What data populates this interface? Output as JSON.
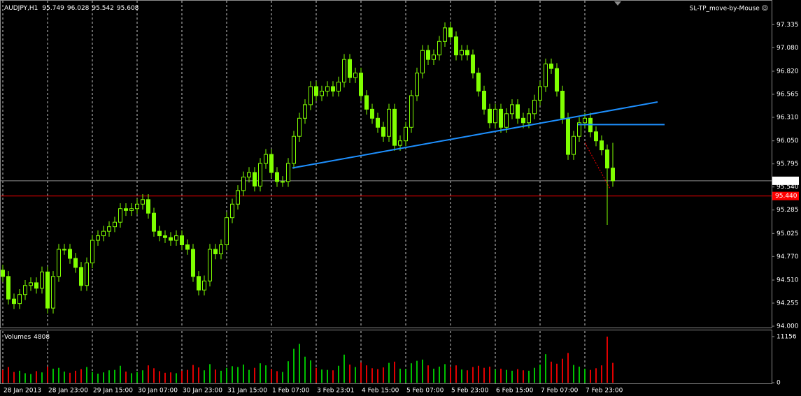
{
  "chart_data": {
    "type": "candlestick",
    "symbol": "AUDJPY,H1",
    "expert_label": "SL-TP_move-by-Mouse ☺",
    "categories": [
      "28 Jan 2013",
      null,
      null,
      null,
      null,
      null,
      null,
      null,
      "28 Jan 23:00",
      null,
      null,
      null,
      null,
      null,
      null,
      null,
      "29 Jan 15:00",
      null,
      null,
      null,
      null,
      null,
      null,
      null,
      "30 Jan 07:00",
      null,
      null,
      null,
      null,
      null,
      null,
      null,
      "30 Jan 23:00",
      null,
      null,
      null,
      null,
      null,
      null,
      null,
      "31 Jan 15:00",
      null,
      null,
      null,
      null,
      null,
      null,
      null,
      "1 Feb 07:00",
      null,
      null,
      null,
      null,
      null,
      null,
      null,
      "3 Feb 23:01",
      null,
      null,
      null,
      null,
      null,
      null,
      null,
      "4 Feb 15:00",
      null,
      null,
      null,
      null,
      null,
      null,
      null,
      "5 Feb 07:00",
      null,
      null,
      null,
      null,
      null,
      null,
      null,
      "5 Feb 23:00",
      null,
      null,
      null,
      null,
      null,
      null,
      null,
      "6 Feb 15:00",
      null,
      null,
      null,
      null,
      null,
      null,
      null,
      "7 Feb 07:00",
      null,
      null,
      null,
      null,
      null,
      null,
      null,
      "7 Feb 23:00",
      null,
      null,
      null,
      null,
      null
    ],
    "open": [
      94.62,
      94.55,
      94.3,
      94.25,
      94.35,
      94.45,
      94.48,
      94.42,
      94.6,
      94.2,
      94.55,
      94.85,
      94.85,
      94.75,
      94.65,
      94.45,
      94.7,
      94.95,
      95.0,
      95.05,
      95.1,
      95.15,
      95.3,
      95.28,
      95.3,
      95.35,
      95.4,
      95.25,
      95.05,
      95.0,
      94.98,
      94.95,
      95.0,
      94.9,
      94.85,
      94.55,
      94.4,
      94.5,
      94.85,
      94.8,
      94.9,
      95.2,
      95.35,
      95.5,
      95.65,
      95.7,
      95.55,
      95.8,
      95.9,
      95.7,
      95.6,
      95.6,
      95.8,
      96.1,
      96.3,
      96.45,
      96.65,
      96.55,
      96.6,
      96.65,
      96.6,
      96.7,
      96.95,
      96.75,
      96.8,
      96.55,
      96.4,
      96.3,
      96.2,
      96.1,
      96.4,
      96.0,
      96.05,
      96.2,
      96.55,
      96.8,
      97.05,
      96.95,
      97.0,
      97.15,
      97.3,
      97.2,
      97.0,
      97.05,
      97.0,
      96.8,
      96.6,
      96.4,
      96.25,
      96.4,
      96.2,
      96.35,
      96.45,
      96.3,
      96.25,
      96.35,
      96.5,
      96.65,
      96.9,
      96.85,
      96.6,
      96.3,
      95.9,
      96.1,
      96.25,
      96.3,
      96.15,
      96.05,
      95.95,
      95.749
    ],
    "high": [
      94.68,
      94.61,
      94.36,
      94.41,
      94.51,
      94.54,
      94.54,
      94.66,
      94.66,
      94.61,
      94.91,
      94.91,
      94.91,
      94.81,
      94.71,
      94.76,
      95.01,
      95.06,
      95.11,
      95.16,
      95.21,
      95.36,
      95.36,
      95.36,
      95.41,
      95.46,
      95.46,
      95.31,
      95.11,
      95.06,
      95.04,
      95.06,
      95.06,
      94.96,
      94.91,
      94.61,
      94.56,
      94.91,
      94.91,
      94.96,
      95.26,
      95.41,
      95.56,
      95.71,
      95.76,
      95.76,
      95.86,
      95.96,
      95.96,
      95.76,
      95.66,
      95.86,
      96.16,
      96.36,
      96.51,
      96.71,
      96.71,
      96.66,
      96.71,
      96.71,
      96.76,
      97.01,
      97.01,
      96.86,
      96.86,
      96.61,
      96.46,
      96.36,
      96.26,
      96.46,
      96.46,
      96.11,
      96.26,
      96.61,
      96.86,
      97.11,
      97.11,
      97.06,
      97.21,
      97.36,
      97.36,
      97.26,
      97.11,
      97.11,
      97.06,
      96.86,
      96.66,
      96.46,
      96.46,
      96.46,
      96.41,
      96.51,
      96.51,
      96.36,
      96.41,
      96.56,
      96.71,
      96.96,
      96.96,
      96.91,
      96.66,
      96.36,
      96.16,
      96.31,
      96.36,
      96.36,
      96.21,
      96.11,
      96.01,
      96.028
    ],
    "low": [
      94.49,
      94.24,
      94.19,
      94.19,
      94.29,
      94.39,
      94.36,
      94.36,
      94.14,
      94.14,
      94.49,
      94.79,
      94.69,
      94.59,
      94.39,
      94.39,
      94.64,
      94.89,
      94.94,
      94.99,
      95.04,
      95.09,
      95.22,
      95.22,
      95.24,
      95.29,
      95.19,
      94.99,
      94.94,
      94.92,
      94.89,
      94.89,
      94.84,
      94.79,
      94.49,
      94.34,
      94.34,
      94.44,
      94.74,
      94.74,
      94.84,
      95.14,
      95.29,
      95.44,
      95.59,
      95.49,
      95.49,
      95.74,
      95.64,
      95.54,
      95.54,
      95.54,
      95.74,
      96.04,
      96.24,
      96.39,
      96.49,
      96.49,
      96.54,
      96.54,
      96.54,
      96.64,
      96.69,
      96.69,
      96.49,
      96.34,
      96.24,
      96.14,
      96.04,
      96.04,
      95.94,
      95.94,
      95.99,
      96.14,
      96.49,
      96.74,
      96.89,
      96.89,
      96.94,
      97.09,
      97.14,
      96.94,
      96.94,
      96.94,
      96.74,
      96.54,
      96.34,
      96.19,
      96.19,
      96.14,
      96.14,
      96.29,
      96.24,
      96.19,
      96.19,
      96.29,
      96.44,
      96.59,
      96.79,
      96.54,
      96.24,
      95.84,
      95.84,
      96.04,
      96.19,
      96.09,
      95.99,
      95.89,
      95.12,
      95.542
    ],
    "close": [
      94.55,
      94.3,
      94.25,
      94.35,
      94.45,
      94.48,
      94.42,
      94.6,
      94.2,
      94.55,
      94.85,
      94.85,
      94.75,
      94.65,
      94.45,
      94.7,
      94.95,
      95.0,
      95.05,
      95.1,
      95.15,
      95.3,
      95.28,
      95.3,
      95.35,
      95.4,
      95.25,
      95.05,
      95.0,
      94.98,
      94.95,
      95.0,
      94.9,
      94.85,
      94.55,
      94.4,
      94.5,
      94.85,
      94.8,
      94.9,
      95.2,
      95.35,
      95.5,
      95.65,
      95.7,
      95.55,
      95.8,
      95.9,
      95.7,
      95.6,
      95.6,
      95.8,
      96.1,
      96.3,
      96.45,
      96.65,
      96.55,
      96.6,
      96.65,
      96.6,
      96.7,
      96.95,
      96.75,
      96.8,
      96.55,
      96.4,
      96.3,
      96.2,
      96.1,
      96.4,
      96.0,
      96.05,
      96.2,
      96.55,
      96.8,
      97.05,
      96.95,
      97.0,
      97.15,
      97.3,
      97.2,
      97.0,
      97.05,
      97.0,
      96.8,
      96.6,
      96.4,
      96.25,
      96.4,
      96.2,
      96.35,
      96.45,
      96.3,
      96.25,
      96.35,
      96.5,
      96.65,
      96.9,
      96.85,
      96.6,
      96.3,
      95.9,
      96.1,
      96.25,
      96.3,
      96.15,
      96.05,
      95.95,
      95.749,
      95.608
    ],
    "color": "#80ff00",
    "ylim": [
      93.977,
      97.608
    ],
    "yticks": [
      {
        "value": 97.335,
        "label": "97.335"
      },
      {
        "value": 97.08,
        "label": "97.080"
      },
      {
        "value": 96.82,
        "label": "96.820"
      },
      {
        "value": 96.565,
        "label": "96.565"
      },
      {
        "value": 96.31,
        "label": "96.310"
      },
      {
        "value": 96.05,
        "label": "96.050"
      },
      {
        "value": 95.795,
        "label": "95.795"
      },
      {
        "value": 95.54,
        "label": "95.540"
      },
      {
        "value": 95.285,
        "label": "95.285"
      },
      {
        "value": 95.025,
        "label": "95.025"
      },
      {
        "value": 94.77,
        "label": "94.770"
      },
      {
        "value": 94.51,
        "label": "94.510"
      },
      {
        "value": 94.255,
        "label": "94.255"
      },
      {
        "value": 94.0,
        "label": "94.000"
      }
    ],
    "bid_line": {
      "value": 95.608,
      "label": "95.608",
      "color": "#8c8c8c"
    },
    "level_line": {
      "value": 95.44,
      "label": "95.440",
      "color": "#ff0000"
    },
    "trendlines": [
      {
        "color": "#1e90ff",
        "x": [
          51.75,
          117
        ],
        "y": [
          95.75,
          96.48
        ]
      },
      {
        "color": "#1e90ff",
        "x": [
          102.75,
          118.25
        ],
        "y": [
          96.23,
          96.23
        ]
      },
      {
        "color": "#ff0000",
        "x": [
          104,
          108.5
        ],
        "y": [
          96.03,
          95.52
        ]
      }
    ],
    "volume_label": "Volumes",
    "volumes": [
      3100,
      3800,
      2600,
      2900,
      2300,
      2100,
      2800,
      2500,
      3900,
      3400,
      3600,
      2700,
      2400,
      2900,
      3300,
      3800,
      2600,
      2200,
      2500,
      3000,
      3100,
      4100,
      2700,
      2300,
      2600,
      3000,
      4200,
      3500,
      2800,
      2400,
      2500,
      2300,
      2900,
      3100,
      4300,
      3700,
      3000,
      4500,
      3200,
      2900,
      3600,
      4000,
      3800,
      4400,
      3100,
      3600,
      4700,
      4200,
      3300,
      2800,
      2600,
      5200,
      8200,
      9400,
      6300,
      5400,
      3600,
      3200,
      3100,
      3000,
      4100,
      6800,
      4400,
      3800,
      4900,
      4200,
      3500,
      3300,
      3700,
      4800,
      5100,
      3400,
      3300,
      4700,
      5300,
      5600,
      4200,
      3400,
      3900,
      4500,
      3800,
      4200,
      3200,
      3000,
      3800,
      4100,
      3600,
      3900,
      3200,
      3400,
      3100,
      2900,
      3300,
      3000,
      2900,
      3600,
      4400,
      6900,
      5100,
      4600,
      5800,
      7200,
      4300,
      3900,
      3400,
      3100,
      3500,
      4200,
      11156,
      4808
    ],
    "volume_colors": {
      "up": "#00c000",
      "down": "#e00000"
    },
    "volume_ylim": [
      0,
      12500
    ],
    "volume_yticks": [
      11156,
      0
    ]
  }
}
